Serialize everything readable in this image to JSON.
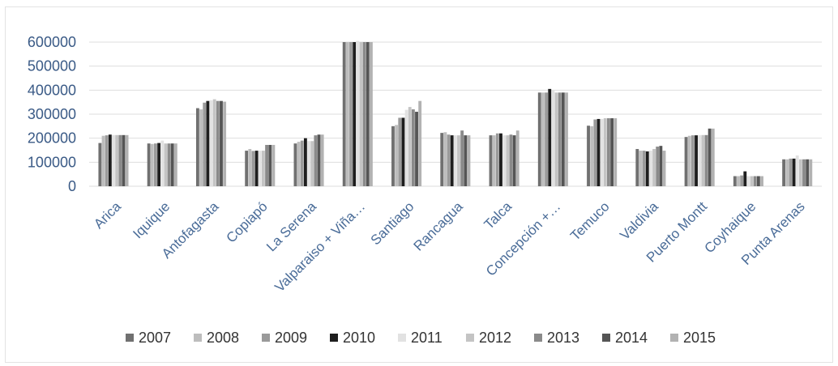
{
  "chart_data": {
    "type": "bar",
    "title": "",
    "xlabel": "",
    "ylabel": "",
    "ylim": [
      0,
      600000
    ],
    "yticks": [
      0,
      100000,
      200000,
      300000,
      400000,
      500000,
      600000
    ],
    "grid": true,
    "legend_position": "bottom",
    "categories": [
      "Arica",
      "Iquique",
      "Antofagasta",
      "Copiapó",
      "La Serena",
      "Valparaiso + Viña…",
      "Santiago",
      "Rancagua",
      "Talca",
      "Concepción +…",
      "Temuco",
      "Valdivia",
      "Puerto Montt",
      "Coyhaique",
      "Punta Arenas"
    ],
    "series": [
      {
        "name": "2007",
        "color": "#707070",
        "values": [
          180000,
          178000,
          325000,
          148000,
          178000,
          600000,
          250000,
          222000,
          212000,
          390000,
          252000,
          155000,
          205000,
          42000,
          112000
        ]
      },
      {
        "name": "2008",
        "color": "#bdbdbd",
        "values": [
          210000,
          176000,
          320000,
          155000,
          185000,
          600000,
          255000,
          225000,
          212000,
          390000,
          250000,
          148000,
          210000,
          42000,
          112000
        ]
      },
      {
        "name": "2009",
        "color": "#9a9a9a",
        "values": [
          212000,
          178000,
          348000,
          147000,
          190000,
          600000,
          285000,
          215000,
          220000,
          390000,
          278000,
          148000,
          212000,
          45000,
          115000
        ]
      },
      {
        "name": "2010",
        "color": "#1e1e1e",
        "values": [
          215000,
          180000,
          355000,
          148000,
          200000,
          600000,
          285000,
          212000,
          220000,
          405000,
          280000,
          145000,
          212000,
          62000,
          115000
        ]
      },
      {
        "name": "2011",
        "color": "#e2e2e2",
        "values": [
          213000,
          190000,
          358000,
          148000,
          188000,
          605000,
          318000,
          212000,
          212000,
          400000,
          280000,
          148000,
          213000,
          42000,
          128000
        ]
      },
      {
        "name": "2012",
        "color": "#c4c4c4",
        "values": [
          213000,
          178000,
          362000,
          148000,
          188000,
          600000,
          330000,
          212000,
          212000,
          390000,
          283000,
          155000,
          213000,
          42000,
          112000
        ]
      },
      {
        "name": "2013",
        "color": "#8a8a8a",
        "values": [
          213000,
          178000,
          355000,
          172000,
          212000,
          600000,
          320000,
          232000,
          215000,
          390000,
          283000,
          165000,
          213000,
          42000,
          112000
        ]
      },
      {
        "name": "2014",
        "color": "#555555",
        "values": [
          213000,
          178000,
          355000,
          172000,
          215000,
          600000,
          310000,
          212000,
          212000,
          390000,
          283000,
          168000,
          240000,
          42000,
          112000
        ]
      },
      {
        "name": "2015",
        "color": "#b2b2b2",
        "values": [
          213000,
          178000,
          352000,
          172000,
          215000,
          600000,
          355000,
          212000,
          232000,
          390000,
          283000,
          148000,
          240000,
          42000,
          112000
        ]
      }
    ]
  }
}
